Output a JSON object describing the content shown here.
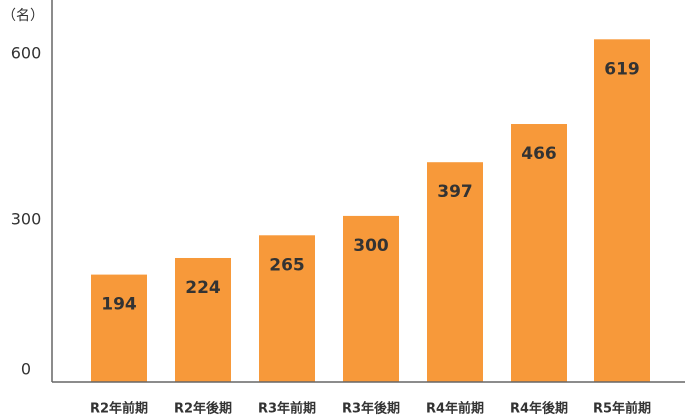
{
  "chart_data": {
    "type": "bar",
    "y_label": "（名）",
    "categories": [
      "R2年前期",
      "R2年後期",
      "R3年前期",
      "R3年後期",
      "R4年前期",
      "R4年後期",
      "R5年前期"
    ],
    "values": [
      194,
      224,
      265,
      300,
      397,
      466,
      619
    ],
    "color": "#f7993a",
    "ylim": [
      0,
      690
    ],
    "yticks": [
      0,
      300,
      600
    ],
    "grid": false
  }
}
